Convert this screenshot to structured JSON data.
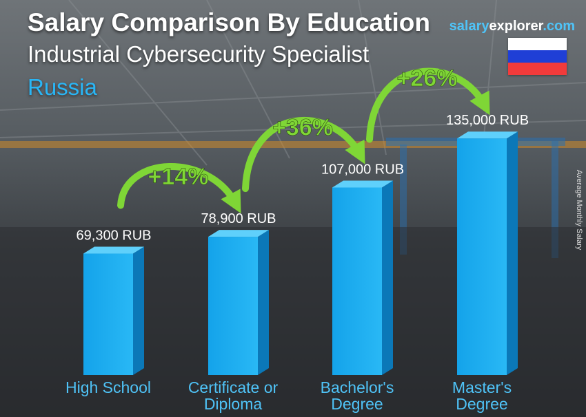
{
  "brand": {
    "part1": "salary",
    "part2": "explorer",
    "part3": ".com"
  },
  "flag": {
    "colors": [
      "#ffffff",
      "#1f3fd6",
      "#f23b3b"
    ]
  },
  "side_label": "Average Monthly Salary",
  "colors": {
    "bar": "#1fa8e8",
    "increase": "#7fd636",
    "label": "#ffffff",
    "category": "#4fc3f7"
  },
  "chart_data": {
    "type": "bar",
    "title": "Salary Comparison By Education",
    "subtitle": "Industrial Cybersecurity Specialist",
    "country": "Russia",
    "ylabel": "Average Monthly Salary",
    "unit": "RUB",
    "categories": [
      "High School",
      "Certificate or Diploma",
      "Bachelor's Degree",
      "Master's Degree"
    ],
    "category_lines": [
      [
        "High School"
      ],
      [
        "Certificate or",
        "Diploma"
      ],
      [
        "Bachelor's",
        "Degree"
      ],
      [
        "Master's",
        "Degree"
      ]
    ],
    "values": [
      69300,
      78900,
      107000,
      135000
    ],
    "value_labels": [
      "69,300 RUB",
      "78,900 RUB",
      "107,000 RUB",
      "135,000 RUB"
    ],
    "increases": [
      "+14%",
      "+36%",
      "+26%"
    ]
  }
}
